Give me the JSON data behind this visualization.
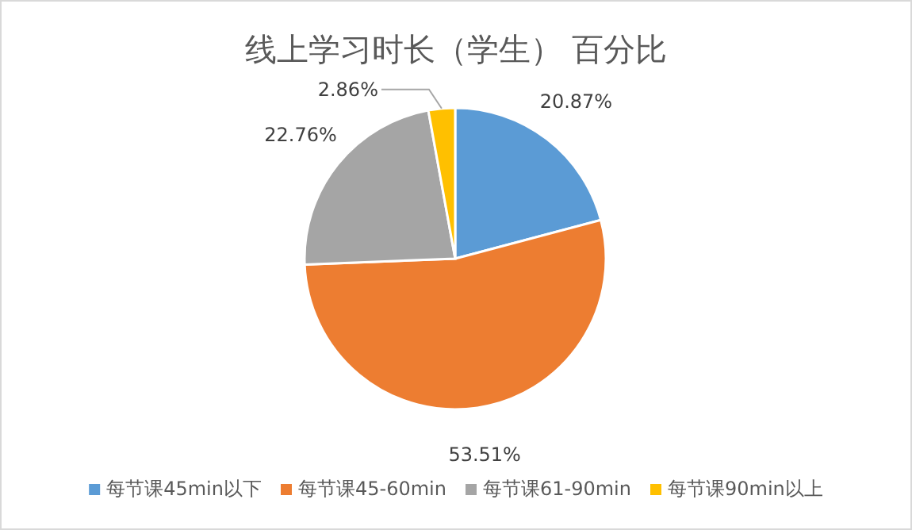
{
  "chart_data": {
    "type": "pie",
    "title": "线上学习时长（学生）  百分比",
    "categories": [
      "每节课45min以下",
      "每节课45-60min",
      "每节课61-90min",
      "每节课90min以上"
    ],
    "values": [
      20.87,
      53.51,
      22.76,
      2.86
    ],
    "colors": [
      "#5b9bd5",
      "#ed7d31",
      "#a5a5a5",
      "#ffc000"
    ],
    "value_labels": [
      "20.87%",
      "53.51%",
      "22.76%",
      "2.86%"
    ],
    "legend": "bottom"
  }
}
